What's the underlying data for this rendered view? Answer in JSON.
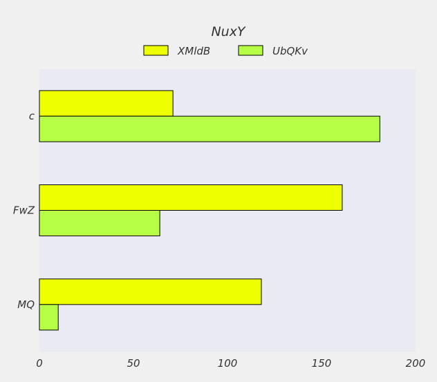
{
  "chart_data": {
    "type": "bar",
    "orientation": "horizontal",
    "title": "NuxY",
    "xlabel": "",
    "ylabel": "",
    "categories": [
      "c",
      "FwZ",
      "MQ"
    ],
    "series": [
      {
        "name": "XMldB",
        "values": [
          71,
          161,
          118
        ],
        "color": "#eeff00"
      },
      {
        "name": "UbQKv",
        "values": [
          181,
          64,
          10
        ],
        "color": "#b6ff46"
      }
    ],
    "xlim": [
      0,
      200
    ],
    "xticks": [
      0,
      50,
      100,
      150,
      200
    ],
    "legend": "top-center",
    "grid": false,
    "plot_background": "#eaeaf2",
    "page_background": "#f0f0f0"
  }
}
